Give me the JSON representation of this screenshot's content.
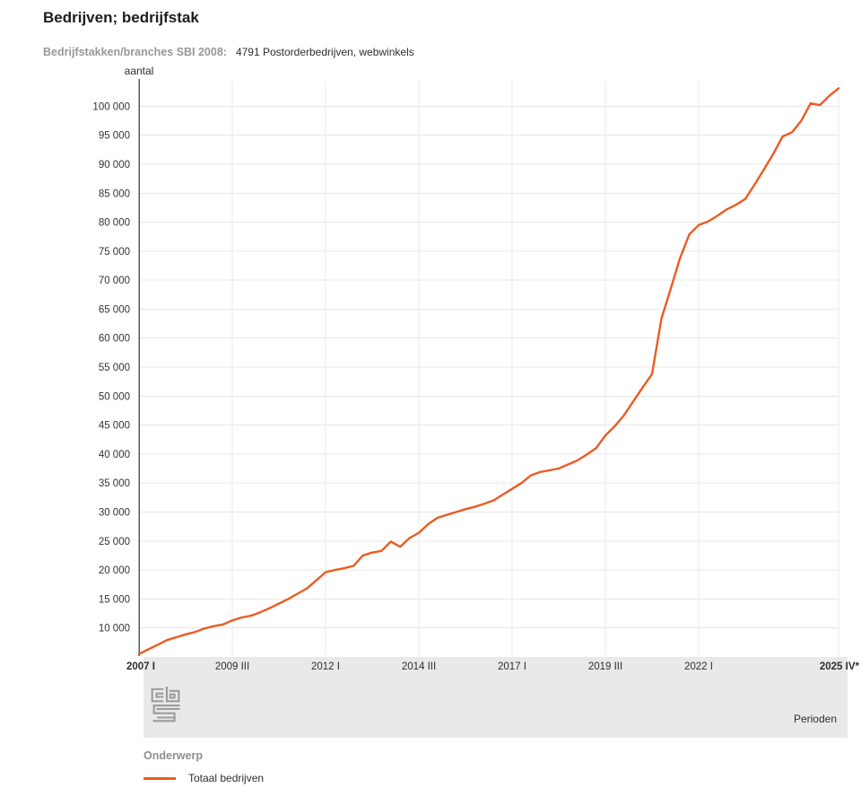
{
  "header": {
    "title": "Bedrijven; bedrijfstak",
    "filter_label": "Bedrijfstakken/branches SBI 2008:",
    "filter_value": "4791 Postorderbedrijven, webwinkels"
  },
  "footer": {
    "axis_label": "Perioden",
    "logo_icon": "cbs-logo"
  },
  "legend": {
    "group_label": "Onderwerp",
    "items": [
      {
        "label": "Totaal bedrijven",
        "color": "#ec5b21"
      }
    ]
  },
  "chart_data": {
    "type": "line",
    "unit_label": "aantal",
    "grid": true,
    "ylim": [
      5300,
      104400
    ],
    "y_axis": {
      "min_label_value": 10000,
      "max_label_value": 100000,
      "step": 5000
    },
    "x_ticks": [
      {
        "index": 0,
        "label": "2007 I",
        "bold": true
      },
      {
        "index": 10,
        "label": "2009 III",
        "bold": false
      },
      {
        "index": 20,
        "label": "2012 I",
        "bold": false
      },
      {
        "index": 30,
        "label": "2014 III",
        "bold": false
      },
      {
        "index": 40,
        "label": "2017 I",
        "bold": false
      },
      {
        "index": 50,
        "label": "2019 III",
        "bold": false
      },
      {
        "index": 60,
        "label": "2022 I",
        "bold": false
      },
      {
        "index": 75,
        "label": "2025 IV*",
        "bold": true
      }
    ],
    "x_period_start": "2007 I",
    "x_period_end": "2025 IV*",
    "points_per_year": 4,
    "series": [
      {
        "name": "Totaal bedrijven",
        "color": "#ec5b21",
        "values": [
          5500,
          6300,
          7100,
          7900,
          8400,
          8900,
          9300,
          9900,
          10300,
          10600,
          11300,
          11800,
          12100,
          12700,
          13400,
          14200,
          15000,
          15900,
          16800,
          18200,
          19600,
          20000,
          20300,
          20700,
          22500,
          23000,
          23300,
          24900,
          24000,
          25500,
          26400,
          27900,
          29000,
          29500,
          30000,
          30500,
          30900,
          31400,
          32000,
          33000,
          34000,
          35000,
          36300,
          36900,
          37200,
          37500,
          38200,
          38900,
          39900,
          41000,
          43200,
          44800,
          46700,
          49100,
          51500,
          53800,
          63300,
          68500,
          73800,
          77900,
          79500,
          80100,
          81100,
          82200,
          83000,
          84000,
          86500,
          89100,
          91800,
          94800,
          95500,
          97500,
          100500,
          100200,
          101800,
          103100
        ]
      }
    ]
  }
}
